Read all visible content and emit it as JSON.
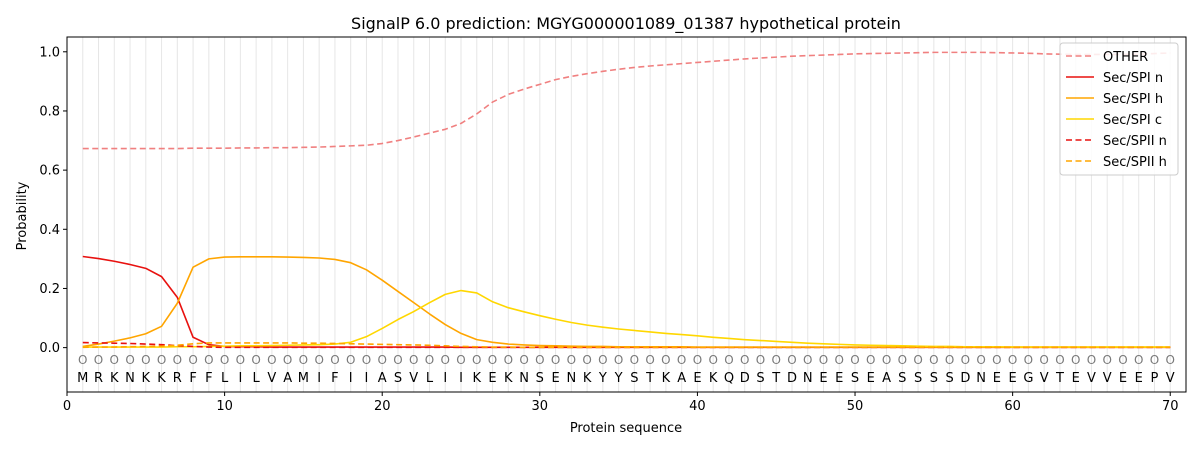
{
  "chart_data": {
    "type": "line",
    "title": "SignalP 6.0 prediction: MGYG000001089_01387 hypothetical protein",
    "xlabel": "Protein sequence",
    "ylabel": "Probability",
    "xlim": [
      0,
      71
    ],
    "ylim": [
      -0.15,
      1.05
    ],
    "xticks": [
      0,
      10,
      20,
      30,
      40,
      50,
      60,
      70
    ],
    "yticks": [
      "0.0",
      "0.2",
      "0.4",
      "0.6",
      "0.8",
      "1.0"
    ],
    "legend_position": "top-right",
    "grid": "vertical lines at each residue",
    "sequence": [
      "M",
      "R",
      "K",
      "N",
      "K",
      "K",
      "R",
      "F",
      "F",
      "L",
      "I",
      "L",
      "V",
      "A",
      "M",
      "I",
      "F",
      "I",
      "I",
      "A",
      "S",
      "V",
      "L",
      "I",
      "I",
      "K",
      "E",
      "K",
      "N",
      "S",
      "E",
      "N",
      "K",
      "Y",
      "Y",
      "S",
      "T",
      "K",
      "A",
      "E",
      "K",
      "Q",
      "D",
      "S",
      "T",
      "D",
      "N",
      "E",
      "E",
      "S",
      "E",
      "A",
      "S",
      "S",
      "S",
      "S",
      "D",
      "N",
      "E",
      "E",
      "G",
      "V",
      "T",
      "E",
      "V",
      "V",
      "E",
      "E",
      "P",
      "V"
    ],
    "prediction_label": "O",
    "series": [
      {
        "name": "OTHER",
        "color": "#f08080",
        "dash": "dashed",
        "values": [
          0.673,
          0.673,
          0.673,
          0.673,
          0.673,
          0.673,
          0.673,
          0.674,
          0.674,
          0.674,
          0.675,
          0.675,
          0.676,
          0.676,
          0.677,
          0.678,
          0.68,
          0.682,
          0.684,
          0.69,
          0.7,
          0.712,
          0.725,
          0.738,
          0.758,
          0.79,
          0.83,
          0.856,
          0.874,
          0.89,
          0.906,
          0.917,
          0.926,
          0.934,
          0.941,
          0.947,
          0.952,
          0.956,
          0.96,
          0.964,
          0.968,
          0.972,
          0.976,
          0.979,
          0.982,
          0.985,
          0.987,
          0.989,
          0.991,
          0.993,
          0.994,
          0.995,
          0.996,
          0.997,
          0.998,
          0.998,
          0.998,
          0.998,
          0.997,
          0.996,
          0.995,
          0.993,
          0.992,
          0.991,
          0.991,
          0.991,
          0.991,
          0.992,
          0.994,
          0.996
        ]
      },
      {
        "name": "Sec/SPI n",
        "color": "#e8110f",
        "dash": "solid",
        "values": [
          0.308,
          0.301,
          0.292,
          0.281,
          0.268,
          0.24,
          0.17,
          0.035,
          0.01,
          0.004,
          0.003,
          0.003,
          0.002,
          0.002,
          0.002,
          0.002,
          0.002,
          0.002,
          0.002,
          0.002,
          0.002,
          0.002,
          0.002,
          0.002,
          0.001,
          0.001,
          0.001,
          0.001,
          0.001,
          0.001,
          0.001,
          0.001,
          0.001,
          0.001,
          0.001,
          0.001,
          0.001,
          0.001,
          0.001,
          0.001,
          0.001,
          0.001,
          0.001,
          0.001,
          0.001,
          0.001,
          0.001,
          0.001,
          0.001,
          0.001,
          0.001,
          0.001,
          0.001,
          0.001,
          0.001,
          0.001,
          0.001,
          0.001,
          0.001,
          0.001,
          0.001,
          0.001,
          0.001,
          0.001,
          0.001,
          0.001,
          0.001,
          0.001,
          0.001,
          0.001
        ]
      },
      {
        "name": "Sec/SPI h",
        "color": "#ffa500",
        "dash": "solid",
        "values": [
          0.004,
          0.012,
          0.022,
          0.033,
          0.047,
          0.072,
          0.15,
          0.272,
          0.3,
          0.306,
          0.307,
          0.307,
          0.307,
          0.306,
          0.305,
          0.303,
          0.298,
          0.287,
          0.263,
          0.228,
          0.19,
          0.152,
          0.114,
          0.078,
          0.048,
          0.027,
          0.018,
          0.012,
          0.009,
          0.007,
          0.006,
          0.005,
          0.004,
          0.004,
          0.003,
          0.003,
          0.003,
          0.003,
          0.003,
          0.002,
          0.002,
          0.002,
          0.002,
          0.002,
          0.002,
          0.002,
          0.002,
          0.002,
          0.002,
          0.002,
          0.002,
          0.002,
          0.002,
          0.002,
          0.002,
          0.002,
          0.002,
          0.002,
          0.002,
          0.002,
          0.002,
          0.002,
          0.002,
          0.002,
          0.002,
          0.002,
          0.002,
          0.002,
          0.002,
          0.002
        ]
      },
      {
        "name": "Sec/SPI c",
        "color": "#ffd700",
        "dash": "solid",
        "values": [
          0.002,
          0.002,
          0.002,
          0.002,
          0.002,
          0.002,
          0.003,
          0.003,
          0.004,
          0.005,
          0.006,
          0.006,
          0.007,
          0.008,
          0.009,
          0.01,
          0.012,
          0.018,
          0.037,
          0.065,
          0.095,
          0.122,
          0.152,
          0.18,
          0.193,
          0.185,
          0.155,
          0.135,
          0.121,
          0.108,
          0.096,
          0.085,
          0.076,
          0.069,
          0.063,
          0.058,
          0.053,
          0.048,
          0.044,
          0.04,
          0.035,
          0.031,
          0.027,
          0.024,
          0.021,
          0.018,
          0.015,
          0.013,
          0.011,
          0.009,
          0.008,
          0.007,
          0.006,
          0.005,
          0.004,
          0.004,
          0.003,
          0.003,
          0.003,
          0.002,
          0.002,
          0.002,
          0.002,
          0.002,
          0.002,
          0.002,
          0.002,
          0.002,
          0.002,
          0.002
        ]
      },
      {
        "name": "Sec/SPII n",
        "color": "#e8110f",
        "dash": "dashed",
        "values": [
          0.017,
          0.016,
          0.015,
          0.014,
          0.012,
          0.01,
          0.007,
          0.004,
          0.002,
          0.001,
          0.001,
          0.001,
          0.001,
          0.001,
          0.001,
          0.001,
          0.001,
          0.001,
          0.001,
          0.001,
          0.001,
          0.001,
          0.001,
          0.001,
          0.001,
          0.001,
          0.001,
          0.001,
          0.001,
          0.001,
          0.001,
          0.001,
          0.001,
          0.001,
          0.001,
          0.001,
          0.001,
          0.001,
          0.001,
          0.001,
          0.001,
          0.001,
          0.001,
          0.001,
          0.001,
          0.001,
          0.001,
          0.001,
          0.001,
          0.001,
          0.001,
          0.001,
          0.001,
          0.001,
          0.001,
          0.001,
          0.001,
          0.001,
          0.001,
          0.001,
          0.001,
          0.001,
          0.001,
          0.001,
          0.001,
          0.001,
          0.001,
          0.001,
          0.001,
          0.001
        ]
      },
      {
        "name": "Sec/SPII h",
        "color": "#ffa500",
        "dash": "dashed",
        "values": [
          0.001,
          0.002,
          0.002,
          0.003,
          0.004,
          0.005,
          0.008,
          0.013,
          0.016,
          0.016,
          0.016,
          0.016,
          0.016,
          0.016,
          0.015,
          0.015,
          0.014,
          0.013,
          0.012,
          0.011,
          0.01,
          0.009,
          0.008,
          0.006,
          0.004,
          0.003,
          0.002,
          0.002,
          0.001,
          0.001,
          0.001,
          0.001,
          0.001,
          0.001,
          0.001,
          0.001,
          0.001,
          0.001,
          0.001,
          0.001,
          0.001,
          0.001,
          0.001,
          0.001,
          0.001,
          0.001,
          0.001,
          0.001,
          0.001,
          0.001,
          0.001,
          0.001,
          0.001,
          0.001,
          0.001,
          0.001,
          0.001,
          0.001,
          0.001,
          0.001,
          0.001,
          0.001,
          0.001,
          0.001,
          0.001,
          0.001,
          0.001,
          0.001,
          0.001,
          0.001
        ]
      }
    ]
  }
}
